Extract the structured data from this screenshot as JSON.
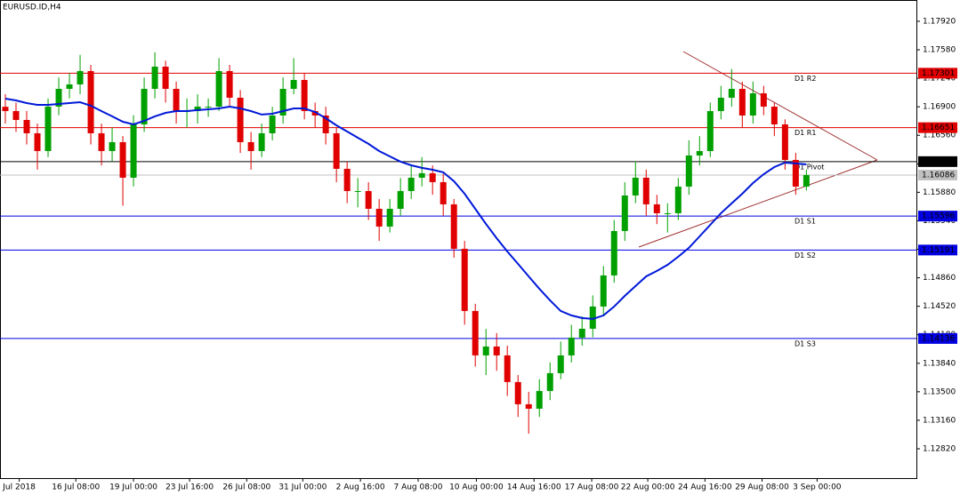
{
  "chart_data": {
    "type": "candlestick",
    "title": "EURUSD.ID,H4",
    "xlim": [
      0,
      85.8
    ],
    "xticks": [
      {
        "value": 1.8,
        "label": "Jul 2018"
      },
      {
        "value": 7.1,
        "label": "16 Jul 08:00"
      },
      {
        "value": 12.5,
        "label": "19 Jul 00:00"
      },
      {
        "value": 17.75,
        "label": "23 Jul 16:00"
      },
      {
        "value": 23.1,
        "label": "26 Jul 08:00"
      },
      {
        "value": 28.35,
        "label": "31 Jul 00:00"
      },
      {
        "value": 33.75,
        "label": "2 Aug 16:00"
      },
      {
        "value": 39.15,
        "label": "7 Aug 08:00"
      },
      {
        "value": 44.6,
        "label": "10 Aug 00:00"
      },
      {
        "value": 50,
        "label": "14 Aug 16:00"
      },
      {
        "value": 55.4,
        "label": "17 Aug 08:00"
      },
      {
        "value": 60.65,
        "label": "22 Aug 00:00"
      },
      {
        "value": 66,
        "label": "24 Aug 16:00"
      },
      {
        "value": 71.35,
        "label": "29 Aug 08:00"
      },
      {
        "value": 76.5,
        "label": "3 Sep 00:00"
      }
    ],
    "ylim": [
      1.1247,
      1.18174
    ],
    "yticks": [
      {
        "value": 1.1792,
        "label": "1.17920"
      },
      {
        "value": 1.1758,
        "label": "1.17580"
      },
      {
        "value": 1.1724,
        "label": "1.17240"
      },
      {
        "value": 1.169,
        "label": "1.16900"
      },
      {
        "value": 1.1656,
        "label": "1.16560"
      },
      {
        "value": 1.1622,
        "label": "1.16220"
      },
      {
        "value": 1.1588,
        "label": "1.15880"
      },
      {
        "value": 1.1554,
        "label": "1.15540"
      },
      {
        "value": 1.152,
        "label": "1.15200"
      },
      {
        "value": 1.1486,
        "label": "1.14860"
      },
      {
        "value": 1.1452,
        "label": "1.14520"
      },
      {
        "value": 1.1418,
        "label": "1.14180"
      },
      {
        "value": 1.1384,
        "label": "1.13840"
      },
      {
        "value": 1.135,
        "label": "1.13500"
      },
      {
        "value": 1.1316,
        "label": "1.13160"
      },
      {
        "value": 1.1282,
        "label": "1.12820"
      }
    ],
    "up_color": "#00a000",
    "down_color": "#e00000",
    "open": [
      1.169,
      1.16849,
      1.16743,
      1.16584,
      1.16372,
      1.16902,
      1.17114,
      1.17167,
      1.17326,
      1.16584,
      1.16372,
      1.16478,
      1.16054,
      1.1669,
      1.17114,
      1.17379,
      1.17114,
      1.16849,
      1.16849,
      1.16902,
      1.16902,
      1.17326,
      1.17008,
      1.16478,
      1.16372,
      1.16584,
      1.16796,
      1.17114,
      1.1722,
      1.16849,
      1.16796,
      1.16584,
      1.1616,
      1.15895,
      1.15895,
      1.15683,
      1.15471,
      1.15683,
      1.15895,
      1.16054,
      1.16107,
      1.16001,
      1.15736,
      1.15206,
      1.14464,
      1.13934,
      1.1404,
      1.13934,
      1.13616,
      1.13351,
      1.13298,
      1.1351,
      1.13722,
      1.13934,
      1.14146,
      1.14252,
      1.14517,
      1.14888,
      1.15418,
      1.15842,
      1.16054,
      1.15736,
      1.1563,
      1.1563,
      1.15948,
      1.16319,
      1.16372,
      1.16849,
      1.17008,
      1.17114,
      1.16796,
      1.17061,
      1.16902,
      1.1669,
      1.16266,
      1.15948
    ],
    "high": [
      1.1705,
      1.1695,
      1.1685,
      1.167,
      1.17,
      1.1725,
      1.173,
      1.1752,
      1.174,
      1.167,
      1.1665,
      1.1655,
      1.168,
      1.1725,
      1.1755,
      1.1745,
      1.172,
      1.17,
      1.1705,
      1.17,
      1.1748,
      1.174,
      1.171,
      1.166,
      1.167,
      1.169,
      1.1725,
      1.1748,
      1.173,
      1.1695,
      1.169,
      1.1665,
      1.1625,
      1.1605,
      1.16,
      1.158,
      1.158,
      1.1605,
      1.162,
      1.163,
      1.162,
      1.161,
      1.158,
      1.153,
      1.1455,
      1.1425,
      1.142,
      1.1405,
      1.137,
      1.135,
      1.1365,
      1.1385,
      1.141,
      1.143,
      1.144,
      1.1465,
      1.15,
      1.1555,
      1.16,
      1.1625,
      1.1615,
      1.1585,
      1.1575,
      1.1605,
      1.165,
      1.1655,
      1.1695,
      1.1715,
      1.1735,
      1.172,
      1.172,
      1.1715,
      1.1695,
      1.1675,
      1.1635,
      1.1615
    ],
    "low": [
      1.167,
      1.166,
      1.1645,
      1.1615,
      1.163,
      1.168,
      1.17,
      1.1705,
      1.1645,
      1.162,
      1.1625,
      1.1572,
      1.1595,
      1.166,
      1.17,
      1.1695,
      1.167,
      1.1665,
      1.167,
      1.1678,
      1.1685,
      1.169,
      1.1635,
      1.1615,
      1.163,
      1.165,
      1.167,
      1.1705,
      1.1675,
      1.1665,
      1.1645,
      1.16,
      1.1575,
      1.157,
      1.1555,
      1.153,
      1.154,
      1.156,
      1.158,
      1.1595,
      1.1585,
      1.156,
      1.151,
      1.143,
      1.138,
      1.137,
      1.1375,
      1.1345,
      1.132,
      1.13,
      1.132,
      1.134,
      1.1365,
      1.1385,
      1.1405,
      1.1415,
      1.144,
      1.148,
      1.153,
      1.1575,
      1.156,
      1.155,
      1.154,
      1.1555,
      1.1585,
      1.162,
      1.163,
      1.1675,
      1.169,
      1.1665,
      1.167,
      1.168,
      1.1655,
      1.1615,
      1.1585,
      1.159
    ],
    "close": [
      1.16849,
      1.16743,
      1.16584,
      1.16372,
      1.16902,
      1.17114,
      1.17167,
      1.17326,
      1.16584,
      1.16372,
      1.16478,
      1.16054,
      1.1669,
      1.17114,
      1.17379,
      1.17114,
      1.16849,
      1.16849,
      1.16902,
      1.16902,
      1.17326,
      1.17008,
      1.16478,
      1.16372,
      1.16584,
      1.16796,
      1.17114,
      1.1722,
      1.16849,
      1.16796,
      1.16584,
      1.1616,
      1.15895,
      1.15895,
      1.15683,
      1.15471,
      1.15683,
      1.15895,
      1.16054,
      1.16107,
      1.16001,
      1.15736,
      1.15206,
      1.14464,
      1.13934,
      1.1404,
      1.13934,
      1.13616,
      1.13351,
      1.13298,
      1.1351,
      1.13722,
      1.13934,
      1.14146,
      1.14252,
      1.14517,
      1.14888,
      1.15418,
      1.15842,
      1.16054,
      1.15736,
      1.1563,
      1.1563,
      1.15948,
      1.16319,
      1.16372,
      1.16849,
      1.17008,
      1.17114,
      1.16796,
      1.17061,
      1.16902,
      1.1669,
      1.16266,
      1.15948,
      1.16086
    ],
    "ma": {
      "color": "#0018d8",
      "values": [
        1.16997,
        1.16976,
        1.16944,
        1.16923,
        1.16923,
        1.16934,
        1.16944,
        1.16955,
        1.16913,
        1.16849,
        1.16786,
        1.16722,
        1.1669,
        1.16732,
        1.16786,
        1.16828,
        1.16849,
        1.16849,
        1.1686,
        1.1687,
        1.16881,
        1.16902,
        1.16881,
        1.16849,
        1.16807,
        1.16817,
        1.16849,
        1.16881,
        1.16881,
        1.16838,
        1.16764,
        1.16679,
        1.16605,
        1.16531,
        1.16457,
        1.16372,
        1.16308,
        1.16245,
        1.16202,
        1.16171,
        1.16149,
        1.16118,
        1.16012,
        1.15863,
        1.15683,
        1.15502,
        1.15333,
        1.15174,
        1.15026,
        1.14877,
        1.14729,
        1.14591,
        1.14464,
        1.14411,
        1.14379,
        1.14369,
        1.14411,
        1.14517,
        1.14644,
        1.14761,
        1.14877,
        1.14941,
        1.15015,
        1.15111,
        1.15217,
        1.15354,
        1.15492,
        1.1563,
        1.15747,
        1.15863,
        1.1599,
        1.16096,
        1.16181,
        1.16234,
        1.16224,
        1.16213
      ]
    },
    "levels": [
      {
        "name": "D1 R2",
        "value": 1.17301,
        "color": "#e00000"
      },
      {
        "name": "D1 R1",
        "value": 1.16651,
        "color": "#e00000"
      },
      {
        "name": "D1 Pivot",
        "value": 1.16246,
        "color": "#000000"
      },
      {
        "value": 1.16086,
        "color": "#c0c0c0"
      },
      {
        "name": "D1 S1",
        "value": 1.15596,
        "color": "#0000e0"
      },
      {
        "name": "D1 S2",
        "value": 1.15191,
        "color": "#0000e0"
      },
      {
        "name": "D1 S3",
        "value": 1.14136,
        "color": "#0000e0"
      }
    ]
  }
}
